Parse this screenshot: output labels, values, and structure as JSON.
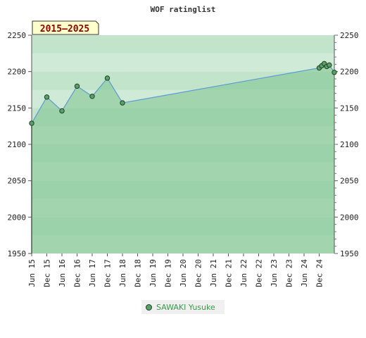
{
  "chart_data": {
    "type": "area",
    "title": "WOF ratinglist",
    "badge": "2015–2025",
    "ylim": [
      1950,
      2250
    ],
    "yticks": [
      1950,
      2000,
      2050,
      2100,
      2150,
      2200,
      2250
    ],
    "xlim": [
      "2015-06",
      "2025-06"
    ],
    "xtick_labels": [
      "Jun 15",
      "Dec 15",
      "Jun 16",
      "Dec 16",
      "Jun 17",
      "Dec 17",
      "Jun 18",
      "Dec 18",
      "Jun 19",
      "Dec 19",
      "Jun 20",
      "Dec 20",
      "Jun 21",
      "Dec 21",
      "Jun 22",
      "Dec 22",
      "Jun 23",
      "Dec 23",
      "Jun 24",
      "Dec 24"
    ],
    "legend_position": "bottom",
    "series": [
      {
        "name": "SAWAKI Yusuke",
        "color": "#5b9bd5",
        "fill": "#7ec28e",
        "points": [
          {
            "x": "2015-06",
            "y": 2129
          },
          {
            "x": "2015-12",
            "y": 2165
          },
          {
            "x": "2016-06",
            "y": 2146
          },
          {
            "x": "2016-12",
            "y": 2180
          },
          {
            "x": "2017-06",
            "y": 2166
          },
          {
            "x": "2017-12",
            "y": 2191
          },
          {
            "x": "2018-06",
            "y": 2157
          },
          {
            "x": "2024-12",
            "y": 2205
          },
          {
            "x": "2025-01",
            "y": 2208
          },
          {
            "x": "2025-02",
            "y": 2211
          },
          {
            "x": "2025-03",
            "y": 2207
          },
          {
            "x": "2025-04",
            "y": 2209
          },
          {
            "x": "2025-06",
            "y": 2199
          }
        ]
      }
    ]
  }
}
